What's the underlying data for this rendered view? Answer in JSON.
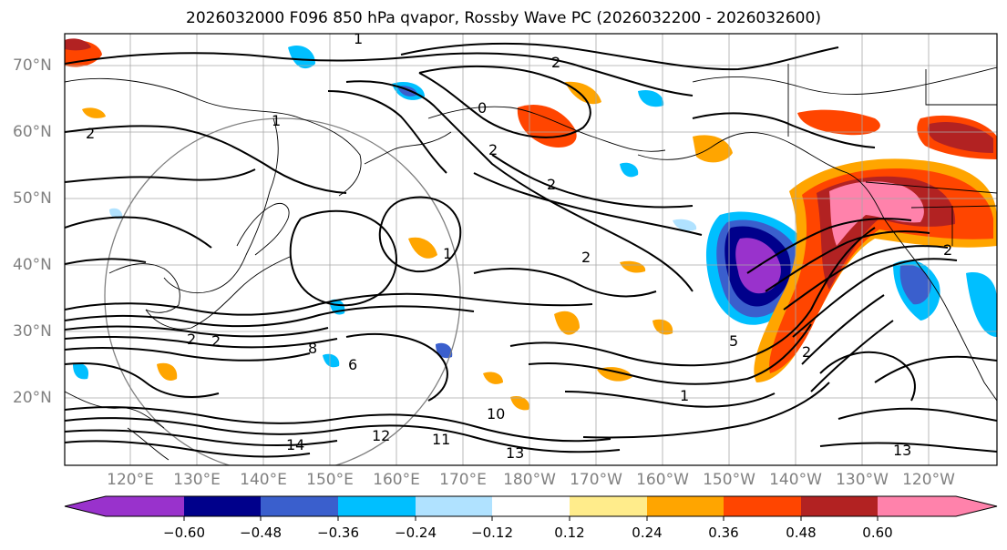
{
  "title": "2026032000 F096 850 hPa qvapor, Rossby Wave PC (2026032200 - 2026032600)",
  "map": {
    "lat_labels": [
      "70°N",
      "60°N",
      "50°N",
      "40°N",
      "30°N",
      "20°N"
    ],
    "lon_labels": [
      "120°E",
      "130°E",
      "140°E",
      "150°E",
      "160°E",
      "170°E",
      "180°W",
      "170°W",
      "160°W",
      "150°W",
      "140°W",
      "130°W",
      "120°W"
    ],
    "contour_labels": [
      "1",
      "2",
      "2",
      "2",
      "1",
      "2",
      "2",
      "1",
      "0",
      "8",
      "6",
      "2",
      "10",
      "11",
      "12",
      "13",
      "14",
      "2",
      "1",
      "2",
      "5",
      "2",
      "13"
    ]
  },
  "colorbar": {
    "ticks": [
      "−0.60",
      "−0.48",
      "−0.36",
      "−0.24",
      "−0.12",
      "0.12",
      "0.24",
      "0.36",
      "0.48",
      "0.60"
    ],
    "colors": [
      "#9932CC",
      "#00008B",
      "#3A5FCD",
      "#00BFFF",
      "#B0E2FF",
      "#FFFFFF",
      "#FFEC8B",
      "#FFA500",
      "#FF4500",
      "#B22222",
      "#FF82AB"
    ]
  }
}
